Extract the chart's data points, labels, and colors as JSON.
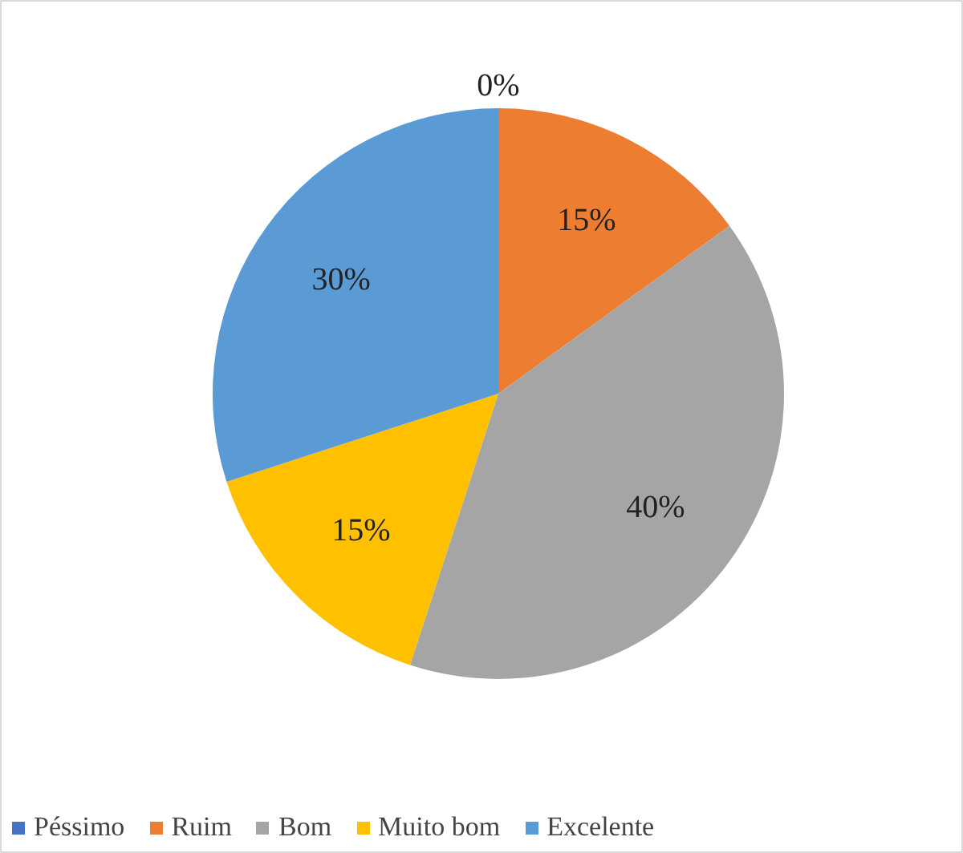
{
  "chart_data": {
    "type": "pie",
    "categories": [
      "Péssimo",
      "Ruim",
      "Bom",
      "Muito bom",
      "Excelente"
    ],
    "values": [
      0,
      15,
      40,
      15,
      30
    ],
    "colors": [
      "#4472c4",
      "#ed7d31",
      "#a5a5a5",
      "#ffc000",
      "#5b9bd5"
    ],
    "value_labels": [
      "0%",
      "15%",
      "40%",
      "15%",
      "30%"
    ],
    "legend": "bottom"
  }
}
